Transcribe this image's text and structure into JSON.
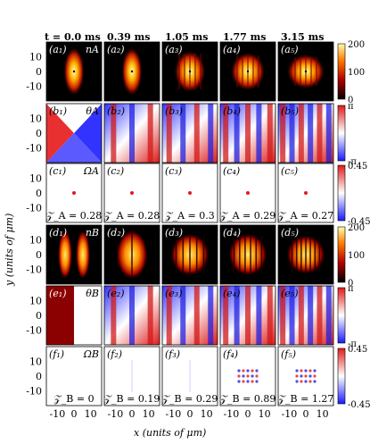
{
  "time_labels": [
    "t = 0.0 ms",
    "0.39 ms",
    "1.05 ms",
    "1.77 ms",
    "3.15 ms"
  ],
  "row_prefixes": [
    "a",
    "b",
    "c",
    "d",
    "e",
    "f"
  ],
  "row_quantities": [
    "n_A",
    "θ_A",
    "Ω_A",
    "n_B",
    "θ_B",
    "Ω_B"
  ],
  "z_rows": {
    "c": [
      "𝒵_A = 0.28",
      "𝒵_A = 0.28",
      "𝒵_A = 0.3",
      "𝒵_A = 0.29",
      "𝒵_A = 0.27"
    ],
    "f": [
      "𝒵_B = 0",
      "𝒵_B = 0.19",
      "𝒵_B = 0.29",
      "𝒵_B = 0.89",
      "𝒵_B = 1.27"
    ]
  },
  "y_ticks": [
    "10",
    "0",
    "-10"
  ],
  "x_ticks": [
    "-10",
    "0",
    "10"
  ],
  "xlabel": "x (units of μm)",
  "ylabel": "y (units of μm)",
  "colorbars": [
    {
      "row": "a",
      "ticks": [
        "200",
        "100",
        "0"
      ]
    },
    {
      "row": "b",
      "ticks": [
        "π",
        "",
        "-π"
      ]
    },
    {
      "row": "c",
      "ticks": [
        "0.45",
        "",
        "-0.45"
      ]
    },
    {
      "row": "d",
      "ticks": [
        "200",
        "100",
        "0"
      ]
    },
    {
      "row": "e",
      "ticks": [
        "π",
        "",
        "-π"
      ]
    },
    {
      "row": "f",
      "ticks": [
        "0.45",
        "",
        "-0.45"
      ]
    }
  ],
  "colors": {
    "density_low": "#000000",
    "density_mid": "#cc1a00",
    "density_high": "#ffff66",
    "phase_neg": "#1a1aff",
    "phase_zero": "#ffffff",
    "phase_pos": "#e31a1a"
  }
}
